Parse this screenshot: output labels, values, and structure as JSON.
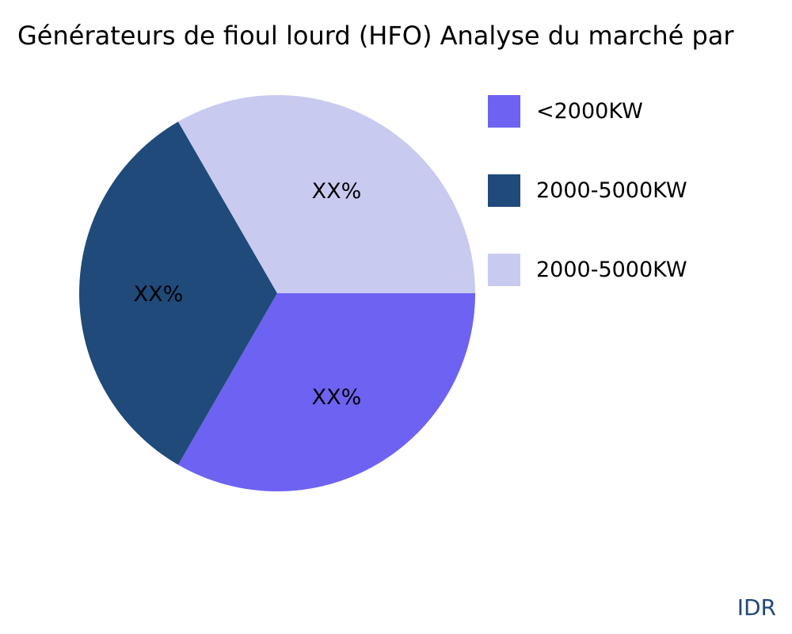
{
  "chart_data": {
    "type": "pie",
    "title": "Générateurs de fioul lourd (HFO) Analyse du marché par",
    "categories": [
      "<2000KW",
      "2000-5000KW",
      "2000-5000KW"
    ],
    "values": [
      1,
      1,
      1
    ],
    "data_labels": [
      "XX%",
      "XX%",
      "XX%"
    ],
    "colors": [
      "#6e62f2",
      "#1f4a7a",
      "#c9caf0"
    ],
    "legend_position": "right"
  },
  "watermark": "IDR"
}
